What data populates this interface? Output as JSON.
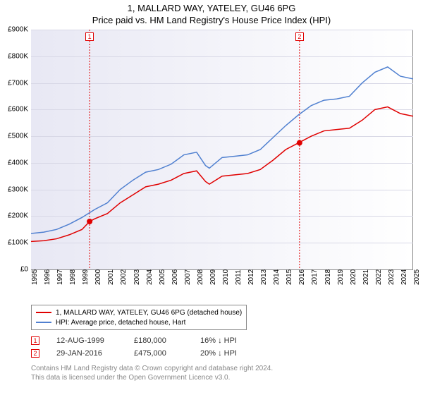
{
  "title": {
    "main": "1, MALLARD WAY, YATELEY, GU46 6PG",
    "sub": "Price paid vs. HM Land Registry's House Price Index (HPI)"
  },
  "chart": {
    "type": "line",
    "background_gradient": [
      "#e8e8f4",
      "#ffffff"
    ],
    "grid_color": "#d8d8e6",
    "axis_color": "#888888",
    "ylim": [
      0,
      900000
    ],
    "ytick_step": 100000,
    "yticks": [
      "£0",
      "£100K",
      "£200K",
      "£300K",
      "£400K",
      "£500K",
      "£600K",
      "£700K",
      "£800K",
      "£900K"
    ],
    "xlim": [
      1995,
      2025
    ],
    "xticks": [
      "1995",
      "1996",
      "1997",
      "1998",
      "1999",
      "2000",
      "2001",
      "2002",
      "2003",
      "2004",
      "2005",
      "2006",
      "2007",
      "2008",
      "2009",
      "2010",
      "2011",
      "2012",
      "2013",
      "2014",
      "2015",
      "2016",
      "2017",
      "2018",
      "2019",
      "2020",
      "2021",
      "2022",
      "2023",
      "2024",
      "2025"
    ],
    "series": [
      {
        "name": "price_paid",
        "label": "1, MALLARD WAY, YATELEY, GU46 6PG (detached house)",
        "color": "#e00000",
        "line_width": 1.5,
        "data": [
          [
            1995,
            105000
          ],
          [
            1996,
            108000
          ],
          [
            1997,
            115000
          ],
          [
            1998,
            130000
          ],
          [
            1999,
            150000
          ],
          [
            1999.6,
            180000
          ],
          [
            2000,
            190000
          ],
          [
            2001,
            210000
          ],
          [
            2002,
            250000
          ],
          [
            2003,
            280000
          ],
          [
            2004,
            310000
          ],
          [
            2005,
            320000
          ],
          [
            2006,
            335000
          ],
          [
            2007,
            360000
          ],
          [
            2008,
            370000
          ],
          [
            2008.7,
            330000
          ],
          [
            2009,
            320000
          ],
          [
            2010,
            350000
          ],
          [
            2011,
            355000
          ],
          [
            2012,
            360000
          ],
          [
            2013,
            375000
          ],
          [
            2014,
            410000
          ],
          [
            2015,
            450000
          ],
          [
            2016,
            475000
          ],
          [
            2017,
            500000
          ],
          [
            2018,
            520000
          ],
          [
            2019,
            525000
          ],
          [
            2020,
            530000
          ],
          [
            2021,
            560000
          ],
          [
            2022,
            600000
          ],
          [
            2023,
            610000
          ],
          [
            2024,
            585000
          ],
          [
            2025,
            575000
          ]
        ]
      },
      {
        "name": "hpi",
        "label": "HPI: Average price, detached house, Hart",
        "color": "#5080d0",
        "line_width": 1.5,
        "data": [
          [
            1995,
            135000
          ],
          [
            1996,
            140000
          ],
          [
            1997,
            150000
          ],
          [
            1998,
            170000
          ],
          [
            1999,
            195000
          ],
          [
            2000,
            225000
          ],
          [
            2001,
            250000
          ],
          [
            2002,
            300000
          ],
          [
            2003,
            335000
          ],
          [
            2004,
            365000
          ],
          [
            2005,
            375000
          ],
          [
            2006,
            395000
          ],
          [
            2007,
            430000
          ],
          [
            2008,
            440000
          ],
          [
            2008.7,
            390000
          ],
          [
            2009,
            380000
          ],
          [
            2010,
            420000
          ],
          [
            2011,
            425000
          ],
          [
            2012,
            430000
          ],
          [
            2013,
            450000
          ],
          [
            2014,
            495000
          ],
          [
            2015,
            540000
          ],
          [
            2016,
            580000
          ],
          [
            2017,
            615000
          ],
          [
            2018,
            635000
          ],
          [
            2019,
            640000
          ],
          [
            2020,
            650000
          ],
          [
            2021,
            700000
          ],
          [
            2022,
            740000
          ],
          [
            2023,
            760000
          ],
          [
            2024,
            725000
          ],
          [
            2025,
            715000
          ]
        ]
      }
    ],
    "sale_markers": [
      {
        "n": "1",
        "x": 1999.6,
        "y": 180000,
        "color": "#e00000",
        "label_x": 1999.6
      },
      {
        "n": "2",
        "x": 2016.08,
        "y": 475000,
        "color": "#e00000",
        "label_x": 2016.08
      }
    ]
  },
  "legend": {
    "items": [
      {
        "color": "#e00000",
        "label": "1, MALLARD WAY, YATELEY, GU46 6PG (detached house)"
      },
      {
        "color": "#5080d0",
        "label": "HPI: Average price, detached house, Hart"
      }
    ]
  },
  "sales": [
    {
      "n": "1",
      "color": "#e00000",
      "date": "12-AUG-1999",
      "price": "£180,000",
      "diff": "16% ↓ HPI"
    },
    {
      "n": "2",
      "color": "#e00000",
      "date": "29-JAN-2016",
      "price": "£475,000",
      "diff": "20% ↓ HPI"
    }
  ],
  "attribution": {
    "line1": "Contains HM Land Registry data © Crown copyright and database right 2024.",
    "line2": "This data is licensed under the Open Government Licence v3.0."
  }
}
